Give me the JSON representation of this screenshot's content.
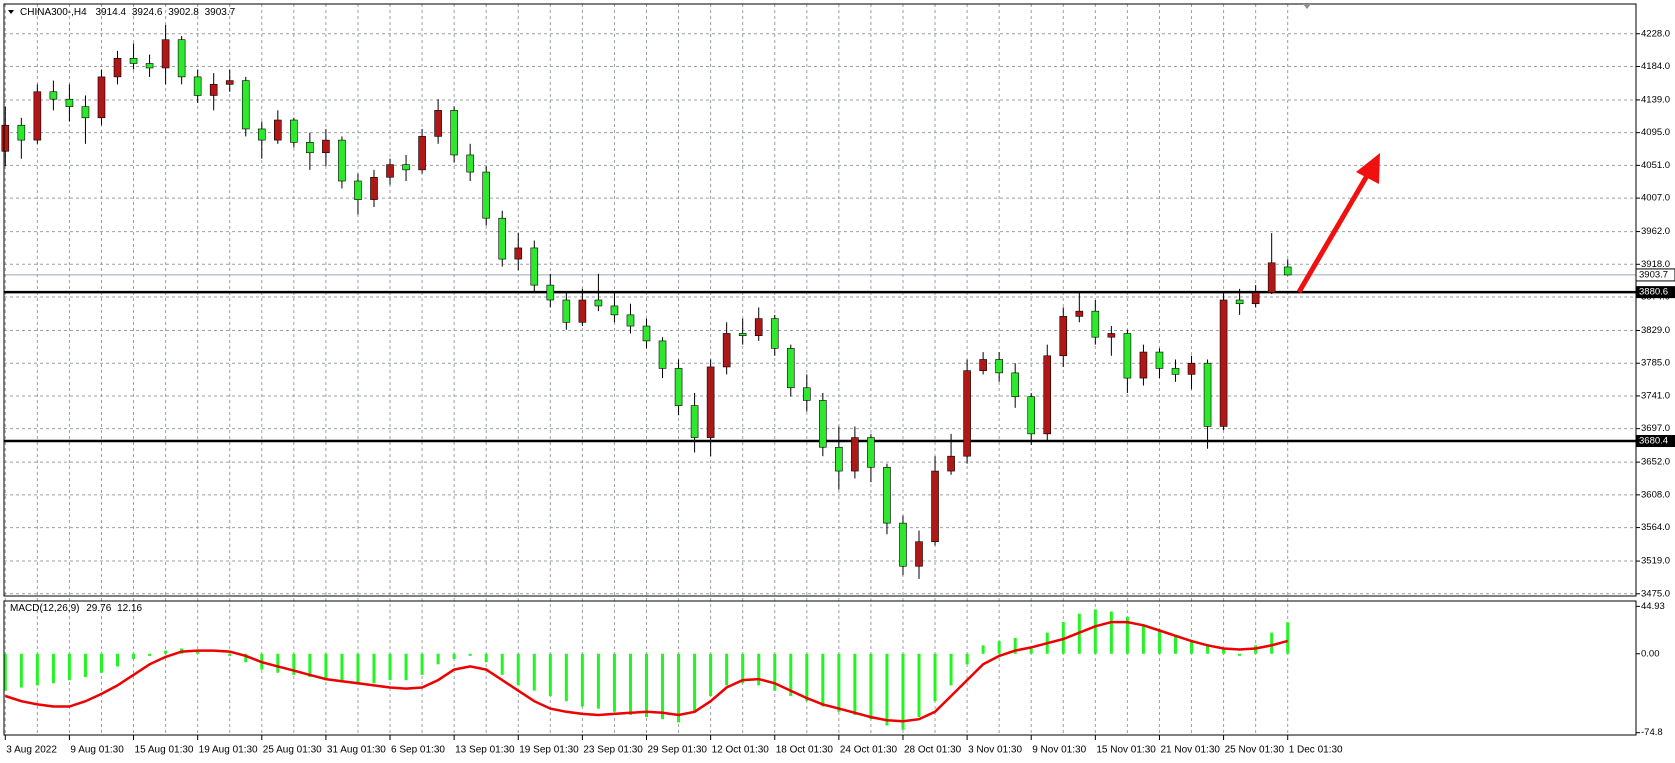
{
  "chart_data": [
    {
      "type": "candlestick",
      "symbol": "CHINA300-,H4",
      "categories": [
        "3 Aug 2022",
        null,
        null,
        null,
        "9 Aug 01:30",
        null,
        null,
        null,
        "15 Aug 01:30",
        null,
        null,
        null,
        "19 Aug 01:30",
        null,
        null,
        null,
        "25 Aug 01:30",
        null,
        null,
        null,
        "31 Aug 01:30",
        null,
        null,
        null,
        "6 Sep 01:30",
        null,
        null,
        null,
        "13 Sep 01:30",
        null,
        null,
        null,
        "19 Sep 01:30",
        null,
        null,
        null,
        "23 Sep 01:30",
        null,
        null,
        null,
        "29 Sep 01:30",
        null,
        null,
        null,
        "12 Oct 01:30",
        null,
        null,
        null,
        "18 Oct 01:30",
        null,
        null,
        null,
        "24 Oct 01:30",
        null,
        null,
        null,
        "28 Oct 01:30",
        null,
        null,
        null,
        "3 Nov 01:30",
        null,
        null,
        null,
        "9 Nov 01:30",
        null,
        null,
        null,
        "15 Nov 01:30",
        null,
        null,
        null,
        "21 Nov 01:30",
        null,
        null,
        null,
        "25 Nov 01:30",
        null,
        null,
        null,
        "1 Dec 01:30"
      ],
      "open": [
        4070,
        4105,
        4085,
        4150,
        4140,
        4130,
        4115,
        4170,
        4195,
        4188,
        4182,
        4220,
        4170,
        4145,
        4160,
        4165,
        4100,
        4085,
        4112,
        4082,
        4068,
        4085,
        4030,
        4005,
        4035,
        4052,
        4045,
        4090,
        4125,
        4065,
        4042,
        3980,
        3925,
        3940,
        3890,
        3870,
        3840,
        3870,
        3862,
        3850,
        3835,
        3815,
        3778,
        3728,
        3685,
        3780,
        3825,
        3822,
        3845,
        3805,
        3752,
        3735,
        3672,
        3640,
        3685,
        3645,
        3570,
        3512,
        3545,
        3640,
        3660,
        3775,
        3790,
        3772,
        3740,
        3690,
        3795,
        3848,
        3855,
        3820,
        3825,
        3765,
        3800,
        3778,
        3770,
        3785,
        3700,
        3870,
        3865,
        3880,
        3914.4
      ],
      "high": [
        4130,
        4115,
        4160,
        4165,
        4160,
        4145,
        4180,
        4205,
        4215,
        4200,
        4240,
        4225,
        4180,
        4175,
        4180,
        4170,
        4110,
        4125,
        4115,
        4095,
        4100,
        4090,
        4040,
        4045,
        4060,
        4065,
        4100,
        4140,
        4130,
        4080,
        4050,
        3990,
        3960,
        3950,
        3905,
        3880,
        3885,
        3905,
        3880,
        3865,
        3845,
        3820,
        3790,
        3745,
        3790,
        3840,
        3845,
        3860,
        3850,
        3810,
        3770,
        3745,
        3700,
        3700,
        3690,
        3650,
        3580,
        3560,
        3660,
        3690,
        3790,
        3800,
        3800,
        3785,
        3745,
        3810,
        3860,
        3880,
        3870,
        3835,
        3830,
        3810,
        3805,
        3790,
        3795,
        3790,
        3880,
        3885,
        3890,
        3960,
        3924.6
      ],
      "low": [
        4050,
        4060,
        4080,
        4125,
        4110,
        4080,
        4105,
        4160,
        4180,
        4170,
        4160,
        4160,
        4135,
        4125,
        4150,
        4090,
        4060,
        4080,
        4075,
        4045,
        4050,
        4020,
        3985,
        3995,
        4025,
        4030,
        4040,
        4080,
        4055,
        4030,
        3970,
        3915,
        3910,
        3880,
        3860,
        3830,
        3835,
        3855,
        3840,
        3825,
        3805,
        3765,
        3715,
        3665,
        3660,
        3770,
        3810,
        3815,
        3795,
        3740,
        3720,
        3660,
        3615,
        3630,
        3625,
        3555,
        3500,
        3495,
        3540,
        3635,
        3650,
        3770,
        3760,
        3725,
        3675,
        3680,
        3780,
        3840,
        3810,
        3795,
        3745,
        3755,
        3765,
        3760,
        3750,
        3670,
        3695,
        3850,
        3860,
        3878,
        3902.8
      ],
      "close": [
        4105,
        4085,
        4150,
        4140,
        4130,
        4115,
        4170,
        4195,
        4188,
        4182,
        4220,
        4170,
        4145,
        4160,
        4165,
        4100,
        4085,
        4112,
        4082,
        4068,
        4085,
        4030,
        4005,
        4035,
        4052,
        4045,
        4090,
        4125,
        4065,
        4042,
        3980,
        3925,
        3940,
        3890,
        3870,
        3840,
        3870,
        3862,
        3850,
        3835,
        3815,
        3778,
        3728,
        3685,
        3780,
        3825,
        3822,
        3845,
        3805,
        3752,
        3735,
        3672,
        3640,
        3685,
        3645,
        3570,
        3512,
        3545,
        3640,
        3660,
        3775,
        3790,
        3772,
        3740,
        3690,
        3795,
        3848,
        3855,
        3820,
        3825,
        3765,
        3800,
        3778,
        3770,
        3785,
        3700,
        3870,
        3865,
        3880,
        3920,
        3903.7
      ],
      "up_color": "#b01818",
      "down_color": "#2ee82e",
      "ylim": [
        3472,
        4268
      ],
      "yticks": [
        {
          "value": 4228,
          "label": "4228.0"
        },
        {
          "value": 4184,
          "label": "4184.0"
        },
        {
          "value": 4139,
          "label": "4139.0"
        },
        {
          "value": 4095,
          "label": "4095.0"
        },
        {
          "value": 4051,
          "label": "4051.0"
        },
        {
          "value": 4007,
          "label": "4007.0"
        },
        {
          "value": 3962,
          "label": "3962.0"
        },
        {
          "value": 3918,
          "label": "3918.0"
        },
        {
          "value": 3874,
          "label": "3874.0"
        },
        {
          "value": 3829,
          "label": "3829.0"
        },
        {
          "value": 3785,
          "label": "3785.0"
        },
        {
          "value": 3741,
          "label": "3741.0"
        },
        {
          "value": 3697,
          "label": "3697.0"
        },
        {
          "value": 3652,
          "label": "3652.0"
        },
        {
          "value": 3608,
          "label": "3608.0"
        },
        {
          "value": 3564,
          "label": "3564.0"
        },
        {
          "value": 3519,
          "label": "3519.0"
        },
        {
          "value": 3475,
          "label": "3475.0"
        }
      ],
      "levels": [
        3880.6,
        3680.4
      ],
      "grid": true
    },
    {
      "type": "macd",
      "title": "MACD(12,26,9)",
      "histogram": {
        "color": "#22f522",
        "values": [
          -35,
          -32,
          -30,
          -28,
          -25,
          -22,
          -18,
          -12,
          -5,
          -2,
          3,
          5,
          2,
          0,
          -2,
          -8,
          -15,
          -18,
          -20,
          -22,
          -25,
          -25,
          -28,
          -28,
          -25,
          -25,
          -20,
          -10,
          -5,
          -2,
          -8,
          -20,
          -30,
          -35,
          -40,
          -45,
          -50,
          -52,
          -55,
          -58,
          -60,
          -62,
          -65,
          -55,
          -40,
          -30,
          -28,
          -30,
          -35,
          -40,
          -45,
          -50,
          -55,
          -58,
          -62,
          -68,
          -72,
          -60,
          -45,
          -30,
          -10,
          8,
          12,
          15,
          5,
          20,
          30,
          38,
          42,
          40,
          35,
          28,
          22,
          18,
          12,
          8,
          5,
          -2,
          8,
          20,
          29.76
        ]
      },
      "signal": {
        "color": "#ee0000",
        "values": [
          -40,
          -45,
          -48,
          -50,
          -50,
          -45,
          -38,
          -30,
          -20,
          -10,
          -3,
          2,
          3,
          3,
          2,
          -2,
          -8,
          -12,
          -16,
          -20,
          -24,
          -26,
          -28,
          -30,
          -32,
          -33,
          -32,
          -25,
          -15,
          -12,
          -15,
          -25,
          -35,
          -45,
          -52,
          -55,
          -57,
          -58,
          -57,
          -56,
          -55,
          -56,
          -58,
          -55,
          -45,
          -32,
          -25,
          -24,
          -28,
          -35,
          -42,
          -48,
          -52,
          -56,
          -60,
          -63,
          -64,
          -62,
          -55,
          -40,
          -25,
          -10,
          -2,
          3,
          6,
          10,
          14,
          20,
          26,
          30,
          30,
          27,
          22,
          17,
          12,
          8,
          5,
          4,
          5,
          8,
          12.16
        ]
      },
      "ylim": [
        -77,
        50
      ],
      "yticks": [
        44.93,
        {
          "value": 0,
          "label": "0.00"
        },
        -74.8
      ]
    }
  ]
}
